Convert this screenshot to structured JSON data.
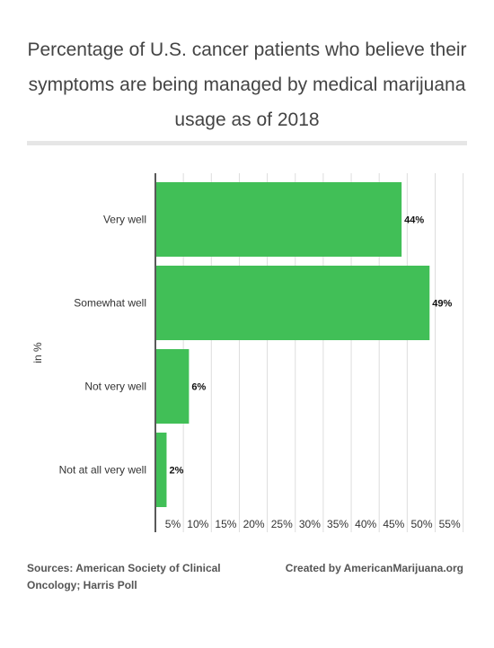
{
  "chart_data": {
    "type": "bar",
    "orientation": "horizontal",
    "title": "Percentage of U.S. cancer patients who believe their symptoms are being managed by medical marijuana usage as of 2018",
    "ylabel": "in %",
    "xlabel": "",
    "categories": [
      "Very well",
      "Somewhat well",
      "Not very well",
      "Not at all very well"
    ],
    "values": [
      44,
      49,
      6,
      2
    ],
    "data_labels": [
      "44%",
      "49%",
      "6%",
      "2%"
    ],
    "x_ticks": [
      5,
      10,
      15,
      20,
      25,
      30,
      35,
      40,
      45,
      50,
      55
    ],
    "x_tick_labels": [
      "5%",
      "10%",
      "15%",
      "20%",
      "25%",
      "30%",
      "35%",
      "40%",
      "45%",
      "50%",
      "55%"
    ],
    "xlim": [
      0,
      55
    ],
    "grid": true,
    "bar_color": "#41bf57"
  },
  "footer": {
    "sources": "Sources: American Society of Clinical Oncology; Harris Poll",
    "credit": "Created by AmericanMarijuana.org"
  }
}
